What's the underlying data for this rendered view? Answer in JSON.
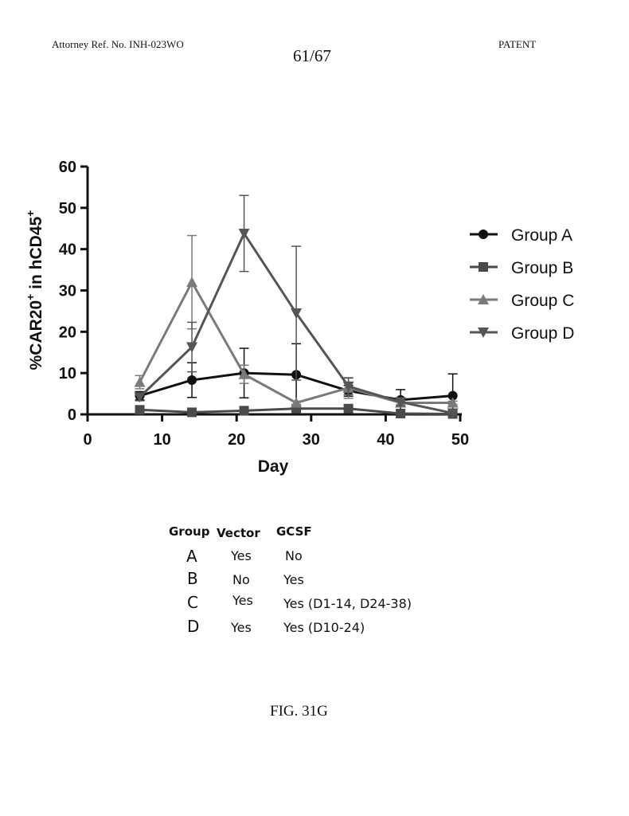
{
  "header": {
    "attorney_ref": "Attorney Ref. No. INH-023WO",
    "page_number": "61/67",
    "patent_label": "PATENT"
  },
  "chart_data": {
    "type": "line",
    "xlabel": "Day",
    "ylabel_main": "%CAR20",
    "ylabel_sup1": "+",
    "ylabel_mid": " in hCD45",
    "ylabel_sup2": "+",
    "xlim": [
      0,
      50
    ],
    "ylim": [
      0,
      60
    ],
    "xticks": [
      "0",
      "10",
      "20",
      "30",
      "40",
      "50"
    ],
    "yticks": [
      "0",
      "10",
      "20",
      "30",
      "40",
      "50",
      "60"
    ],
    "legend_position": "right",
    "x": [
      7,
      14,
      21,
      28,
      35,
      42,
      49
    ],
    "series": [
      {
        "name": "Group A",
        "marker": "circle",
        "color": "#111111",
        "values": [
          4.5,
          8.3,
          10.0,
          9.6,
          5.7,
          3.5,
          4.5
        ],
        "err_hi": [
          1.0,
          4.2,
          6.0,
          7.5,
          1.3,
          2.5,
          5.3
        ],
        "err_lo": [
          1.0,
          4.2,
          6.0,
          7.5,
          1.3,
          2.5,
          4.5
        ]
      },
      {
        "name": "Group B",
        "marker": "square",
        "color": "#4a4a4a",
        "values": [
          1.1,
          0.5,
          0.9,
          1.4,
          1.4,
          0.2,
          0.1
        ],
        "err_hi": [
          0.3,
          0.2,
          0.2,
          0.3,
          0.3,
          0.1,
          0.1
        ],
        "err_lo": [
          0.3,
          0.2,
          0.2,
          0.3,
          0.3,
          0.1,
          0.1
        ]
      },
      {
        "name": "Group C",
        "marker": "triangle-up",
        "color": "#7a7a7a",
        "values": [
          7.8,
          32.0,
          9.7,
          2.8,
          6.4,
          2.8,
          2.8
        ],
        "err_hi": [
          1.6,
          11.3,
          2.2,
          0.4,
          2.5,
          0.5,
          0.4
        ],
        "err_lo": [
          1.6,
          11.3,
          2.2,
          0.4,
          2.5,
          0.5,
          0.4
        ]
      },
      {
        "name": "Group D",
        "marker": "triangle-down",
        "color": "#555555",
        "values": [
          4.2,
          16.3,
          43.8,
          24.5,
          6.8,
          3.0,
          0.3
        ],
        "err_hi": [
          0.9,
          6.0,
          9.2,
          16.2,
          2.0,
          0.9,
          0.2
        ],
        "err_lo": [
          0.9,
          6.0,
          9.2,
          16.2,
          2.0,
          0.9,
          0.2
        ]
      }
    ]
  },
  "group_table": {
    "headers": [
      "Group",
      "Vector",
      "GCSF"
    ],
    "rows": [
      {
        "group": "A",
        "vector": "Yes",
        "gcsf": "No"
      },
      {
        "group": "B",
        "vector": "No",
        "gcsf": "Yes"
      },
      {
        "group": "C",
        "vector": "Yes",
        "gcsf": "Yes (D1-14, D24-38)"
      },
      {
        "group": "D",
        "vector": "Yes",
        "gcsf": "Yes (D10-24)"
      }
    ]
  },
  "caption": "FIG. 31G"
}
